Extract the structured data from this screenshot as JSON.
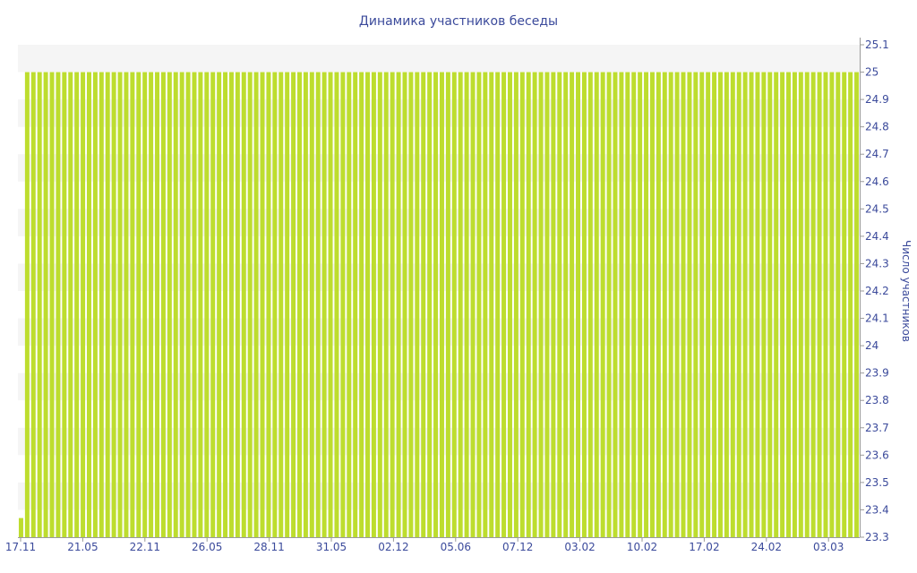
{
  "chart_data": {
    "type": "bar",
    "title": "Динамика участников беседы",
    "ylabel": "Число участников",
    "xlabel": "",
    "ylim": [
      23.3,
      25.1
    ],
    "y_ticks": [
      23.3,
      23.4,
      23.5,
      23.6,
      23.7,
      23.8,
      23.9,
      24,
      24.1,
      24.2,
      24.3,
      24.4,
      24.5,
      24.6,
      24.7,
      24.8,
      24.9,
      25,
      25.1
    ],
    "x_tick_labels": [
      "17.11",
      "21.05",
      "22.11",
      "26.05",
      "28.11",
      "31.05",
      "02.12",
      "05.06",
      "07.12",
      "03.02",
      "10.02",
      "17.02",
      "24.02",
      "03.03"
    ],
    "bar_count": 136,
    "values": [
      23.37,
      25,
      25,
      25,
      25,
      25,
      25,
      25,
      25,
      25,
      25,
      25,
      25,
      25,
      25,
      25,
      25,
      25,
      25,
      25,
      25,
      25,
      25,
      25,
      25,
      25,
      25,
      25,
      25,
      25,
      25,
      25,
      25,
      25,
      25,
      25,
      25,
      25,
      25,
      25,
      25,
      25,
      25,
      25,
      25,
      25,
      25,
      25,
      25,
      25,
      25,
      25,
      25,
      25,
      25,
      25,
      25,
      25,
      25,
      25,
      25,
      25,
      25,
      25,
      25,
      25,
      25,
      25,
      25,
      25,
      25,
      25,
      25,
      25,
      25,
      25,
      25,
      25,
      25,
      25,
      25,
      25,
      25,
      25,
      25,
      25,
      25,
      25,
      25,
      25,
      25,
      25,
      25,
      25,
      25,
      25,
      25,
      25,
      25,
      25,
      25,
      25,
      25,
      25,
      25,
      25,
      25,
      25,
      25,
      25,
      25,
      25,
      25,
      25,
      25,
      25,
      25,
      25,
      25,
      25,
      25,
      25,
      25,
      25,
      25,
      25,
      25,
      25,
      25,
      25,
      25,
      25,
      25,
      25,
      25,
      25
    ],
    "grid": "horizontal bands",
    "legend": "none"
  },
  "colors": {
    "bar": "#bddd2e",
    "text": "#3b4a9b",
    "band": "#f5f5f5",
    "axis": "#9a9a9a"
  }
}
